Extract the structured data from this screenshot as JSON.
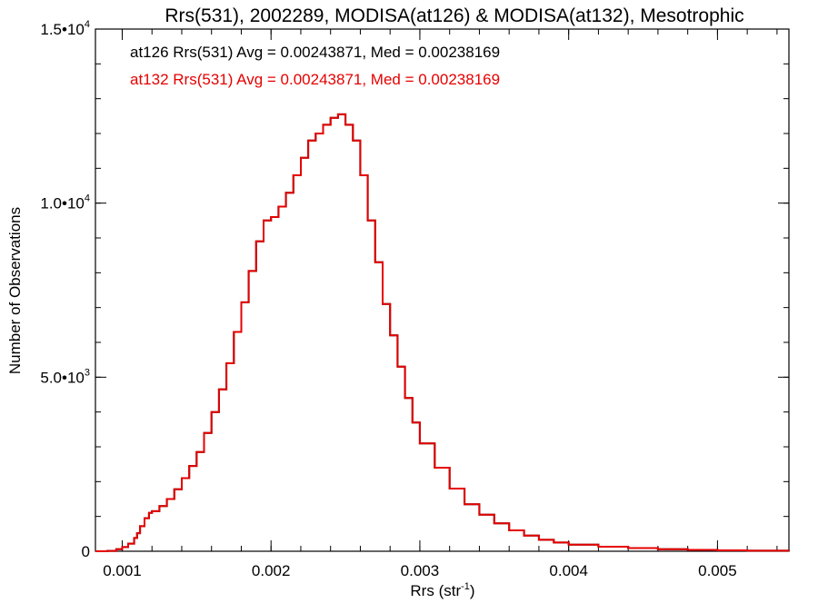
{
  "chart_data": {
    "type": "line",
    "title": "Rrs(531), 2002289, MODISA(at126) & MODISA(at132), Mesotrophic",
    "xlabel": "Rrs (str",
    "xlabel_sup": "-1",
    "xlabel_end": ")",
    "ylabel": "Number of Observations",
    "xlim": [
      0.00082,
      0.00548
    ],
    "ylim": [
      0,
      15000
    ],
    "grid": false,
    "legend_position": "top-left",
    "x_ticks": [
      {
        "value": 0.001,
        "label": "0.001"
      },
      {
        "value": 0.002,
        "label": "0.002"
      },
      {
        "value": 0.003,
        "label": "0.003"
      },
      {
        "value": 0.004,
        "label": "0.004"
      },
      {
        "value": 0.005,
        "label": "0.005"
      }
    ],
    "y_ticks": [
      {
        "value": 0,
        "base": "0",
        "exp": ""
      },
      {
        "value": 5000,
        "base": "5.0•10",
        "exp": "3"
      },
      {
        "value": 10000,
        "base": "1.0•10",
        "exp": "4"
      },
      {
        "value": 15000,
        "base": "1.5•10",
        "exp": "4"
      }
    ],
    "x_minor_step": 0.0002,
    "y_minor_step": 1000,
    "x": [
      0.00082,
      0.0009,
      0.00096,
      0.001,
      0.00104,
      0.00108,
      0.0011,
      0.00112,
      0.00115,
      0.00118,
      0.0012,
      0.00125,
      0.0013,
      0.00135,
      0.0014,
      0.00145,
      0.0015,
      0.00155,
      0.0016,
      0.00165,
      0.0017,
      0.00175,
      0.0018,
      0.00185,
      0.0019,
      0.00195,
      0.002,
      0.00205,
      0.0021,
      0.00215,
      0.0022,
      0.00225,
      0.0023,
      0.00235,
      0.0024,
      0.00245,
      0.0025,
      0.00255,
      0.0026,
      0.00265,
      0.0027,
      0.00275,
      0.0028,
      0.00285,
      0.0029,
      0.00295,
      0.003,
      0.0031,
      0.0032,
      0.0033,
      0.0034,
      0.0035,
      0.0036,
      0.0037,
      0.0038,
      0.0039,
      0.004,
      0.0042,
      0.0044,
      0.0046,
      0.0048,
      0.005,
      0.0052,
      0.00548
    ],
    "series": [
      {
        "name": "at126",
        "color": "#000000",
        "values": [
          0,
          10,
          60,
          120,
          220,
          380,
          520,
          720,
          950,
          1100,
          1150,
          1300,
          1500,
          1780,
          2100,
          2450,
          2850,
          3400,
          4000,
          4650,
          5400,
          6300,
          7150,
          8050,
          8900,
          9500,
          9600,
          9900,
          10300,
          10800,
          11300,
          11800,
          12000,
          12250,
          12450,
          12550,
          12250,
          11800,
          10800,
          9500,
          8300,
          7100,
          6200,
          5300,
          4400,
          3700,
          3100,
          2400,
          1800,
          1350,
          1050,
          800,
          600,
          450,
          330,
          250,
          190,
          130,
          90,
          60,
          40,
          25,
          15,
          10
        ]
      },
      {
        "name": "at132",
        "color": "#e60000",
        "values": [
          0,
          10,
          60,
          120,
          220,
          380,
          520,
          720,
          950,
          1100,
          1150,
          1300,
          1500,
          1780,
          2100,
          2450,
          2850,
          3400,
          4000,
          4650,
          5400,
          6300,
          7150,
          8050,
          8900,
          9500,
          9600,
          9900,
          10300,
          10800,
          11300,
          11800,
          12000,
          12250,
          12450,
          12550,
          12250,
          11800,
          10800,
          9500,
          8300,
          7100,
          6200,
          5300,
          4400,
          3700,
          3100,
          2400,
          1800,
          1350,
          1050,
          800,
          600,
          450,
          330,
          250,
          190,
          130,
          90,
          60,
          40,
          25,
          15,
          10
        ]
      }
    ],
    "legend": [
      {
        "text": "at126 Rrs(531) Avg = 0.00243871, Med = 0.00238169",
        "color": "#000000"
      },
      {
        "text": "at132 Rrs(531) Avg = 0.00243871, Med = 0.00238169",
        "color": "#e60000"
      }
    ]
  }
}
